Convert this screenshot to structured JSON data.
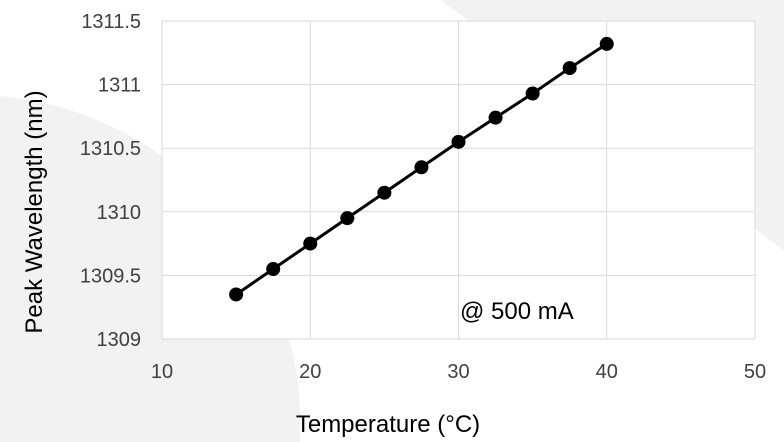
{
  "chart_data": {
    "type": "scatter",
    "title": "",
    "xlabel": "Temperature (°C)",
    "ylabel": "Peak Wavelength (nm)",
    "xlim": [
      10,
      50
    ],
    "ylim": [
      1309,
      1311.5
    ],
    "xticks": [
      10,
      20,
      30,
      40,
      50
    ],
    "yticks": [
      1309,
      1309.5,
      1310,
      1310.5,
      1311,
      1311.5
    ],
    "x_tick_labels": [
      "10",
      "20",
      "30",
      "40",
      "50"
    ],
    "y_tick_labels": [
      "1309",
      "1309.5",
      "1310",
      "1310.5",
      "1311",
      "1311.5"
    ],
    "grid": true,
    "annotation": "@ 500 mA",
    "series": [
      {
        "marker": "circle",
        "line": true,
        "color": "#000000",
        "x": [
          15,
          17.5,
          20,
          22.5,
          25,
          27.5,
          30,
          32.5,
          35,
          37.5,
          40
        ],
        "y": [
          1309.35,
          1309.55,
          1309.75,
          1309.95,
          1310.15,
          1310.35,
          1310.55,
          1310.74,
          1310.93,
          1311.13,
          1311.32
        ]
      }
    ]
  },
  "background_shapes_color": "#f2f2f2",
  "grid_color": "#d9d9d9"
}
